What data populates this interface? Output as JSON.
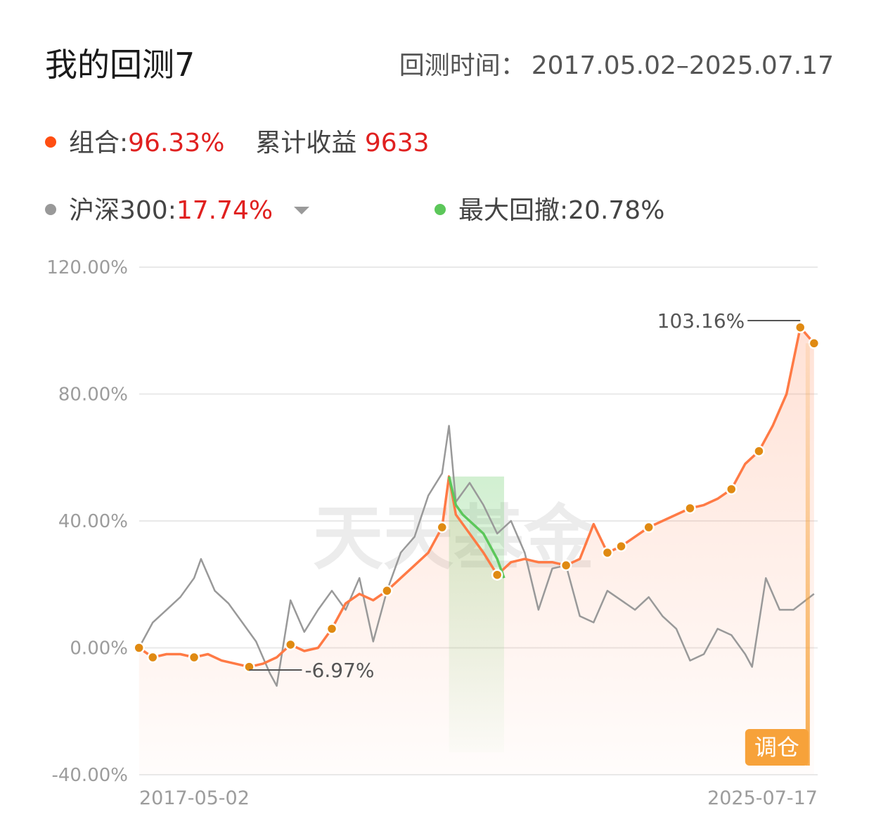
{
  "header": {
    "title": "我的回测7",
    "period_label": "回测时间：",
    "period_value": "2017.05.02–2025.07.17"
  },
  "legend": {
    "portfolio": {
      "label": "组合:",
      "value": "96.33%",
      "color": "#ff4e12"
    },
    "cumulative": {
      "label": "累计收益",
      "value": "9633"
    },
    "benchmark": {
      "label": "沪深300:",
      "value": "17.74%",
      "color": "#999999"
    },
    "drawdown": {
      "label": "最大回撤:",
      "value": "20.78%",
      "color": "#5cc75a"
    }
  },
  "watermark": "天天基金",
  "rebalance_button": "调仓",
  "chart_data": {
    "type": "line",
    "x_start": "2017-05-02",
    "x_end": "2025-07-17",
    "ylim": [
      -40,
      120
    ],
    "y_ticks": [
      "120.00%",
      "80.00%",
      "40.00%",
      "0.00%",
      "-40.00%"
    ],
    "x_ticks": [
      "2017-05-02",
      "2025-07-17"
    ],
    "annotations": {
      "max": "103.16%",
      "min": "-6.97%"
    },
    "series": [
      {
        "role": "portfolio",
        "color": "#ff7a45",
        "x": [
          "2017-05",
          "2017-07",
          "2017-09",
          "2017-11",
          "2018-01",
          "2018-03",
          "2018-05",
          "2018-07",
          "2018-09",
          "2018-11",
          "2019-01",
          "2019-03",
          "2019-05",
          "2019-07",
          "2019-09",
          "2019-11",
          "2020-01",
          "2020-03",
          "2020-05",
          "2020-07",
          "2020-09",
          "2020-11",
          "2021-01",
          "2021-02",
          "2021-03",
          "2021-05",
          "2021-07",
          "2021-09",
          "2021-11",
          "2022-01",
          "2022-03",
          "2022-05",
          "2022-07",
          "2022-09",
          "2022-11",
          "2023-01",
          "2023-03",
          "2023-05",
          "2023-07",
          "2023-09",
          "2023-11",
          "2024-01",
          "2024-03",
          "2024-05",
          "2024-07",
          "2024-09",
          "2024-11",
          "2025-01",
          "2025-03",
          "2025-05",
          "2025-07"
        ],
        "values": [
          0,
          -3,
          -2,
          -2,
          -3,
          -2,
          -4,
          -5,
          -6,
          -5,
          -3,
          1,
          -1,
          0,
          6,
          14,
          17,
          15,
          18,
          22,
          26,
          30,
          38,
          54,
          42,
          36,
          30,
          23,
          27,
          28,
          27,
          27,
          26,
          28,
          39,
          30,
          32,
          35,
          38,
          40,
          42,
          44,
          45,
          47,
          50,
          58,
          62,
          70,
          80,
          101,
          96
        ]
      },
      {
        "role": "benchmark",
        "color": "#999999",
        "x": [
          "2017-05",
          "2017-07",
          "2017-09",
          "2017-11",
          "2018-01",
          "2018-02",
          "2018-04",
          "2018-06",
          "2018-08",
          "2018-10",
          "2018-12",
          "2019-01",
          "2019-03",
          "2019-05",
          "2019-07",
          "2019-09",
          "2019-11",
          "2020-01",
          "2020-03",
          "2020-05",
          "2020-07",
          "2020-09",
          "2020-11",
          "2021-01",
          "2021-02",
          "2021-03",
          "2021-05",
          "2021-07",
          "2021-09",
          "2021-11",
          "2022-01",
          "2022-03",
          "2022-05",
          "2022-07",
          "2022-09",
          "2022-11",
          "2023-01",
          "2023-03",
          "2023-05",
          "2023-07",
          "2023-09",
          "2023-11",
          "2024-01",
          "2024-03",
          "2024-05",
          "2024-07",
          "2024-09",
          "2024-10",
          "2024-12",
          "2025-02",
          "2025-04",
          "2025-07"
        ],
        "values": [
          0,
          8,
          12,
          16,
          22,
          28,
          18,
          14,
          8,
          2,
          -8,
          -12,
          15,
          5,
          12,
          18,
          12,
          22,
          2,
          18,
          30,
          35,
          48,
          55,
          70,
          46,
          52,
          45,
          36,
          40,
          30,
          12,
          25,
          26,
          10,
          8,
          18,
          15,
          12,
          16,
          10,
          6,
          -4,
          -2,
          6,
          4,
          -2,
          -6,
          22,
          12,
          12,
          17
        ]
      },
      {
        "role": "drawdown",
        "color": "#5cc75a",
        "x": [
          "2021-02",
          "2021-03",
          "2021-04",
          "2021-05",
          "2021-06",
          "2021-07",
          "2021-08",
          "2021-09",
          "2021-10"
        ],
        "values": [
          54,
          45,
          42,
          40,
          38,
          36,
          32,
          28,
          22
        ]
      }
    ]
  }
}
